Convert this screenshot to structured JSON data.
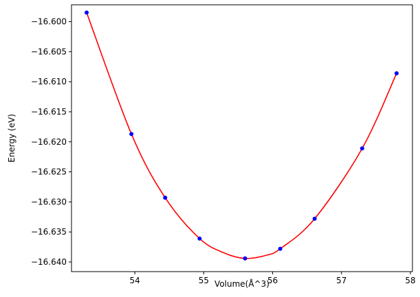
{
  "chart_data": {
    "type": "scatter",
    "title": "",
    "xlabel": "Volume(Å^3)",
    "ylabel": "Energy (eV)",
    "xlim": [
      53.08,
      58.03
    ],
    "ylim": [
      -16.6416,
      -16.5972
    ],
    "xticks": [
      {
        "value": 54,
        "label": "54"
      },
      {
        "value": 55,
        "label": "55"
      },
      {
        "value": 56,
        "label": "56"
      },
      {
        "value": 57,
        "label": "57"
      },
      {
        "value": 58,
        "label": "58"
      }
    ],
    "yticks": [
      {
        "value": -16.6,
        "label": "−16.600"
      },
      {
        "value": -16.605,
        "label": "−16.605"
      },
      {
        "value": -16.61,
        "label": "−16.610"
      },
      {
        "value": -16.615,
        "label": "−16.615"
      },
      {
        "value": -16.62,
        "label": "−16.620"
      },
      {
        "value": -16.625,
        "label": "−16.625"
      },
      {
        "value": -16.63,
        "label": "−16.630"
      },
      {
        "value": -16.635,
        "label": "−16.635"
      },
      {
        "value": -16.64,
        "label": "−16.640"
      }
    ],
    "grid": false,
    "legend": "none",
    "series": [
      {
        "kind": "scatter",
        "color": "#0000ff",
        "x": [
          53.3,
          53.95,
          54.44,
          54.94,
          55.6,
          56.11,
          56.61,
          57.3,
          57.8
        ],
        "y": [
          -16.5985,
          -16.6187,
          -16.6293,
          -16.6361,
          -16.6394,
          -16.6378,
          -16.6328,
          -16.6211,
          -16.6086
        ]
      },
      {
        "kind": "fit",
        "color": "#ff0000",
        "x": [
          53.3,
          53.95,
          54.44,
          54.94,
          55.3,
          55.6,
          55.9,
          56.11,
          56.61,
          57.3,
          57.8
        ],
        "y": [
          -16.5985,
          -16.6187,
          -16.6293,
          -16.6361,
          -16.6385,
          -16.6394,
          -16.6389,
          -16.6378,
          -16.6328,
          -16.6211,
          -16.6086
        ]
      }
    ]
  }
}
